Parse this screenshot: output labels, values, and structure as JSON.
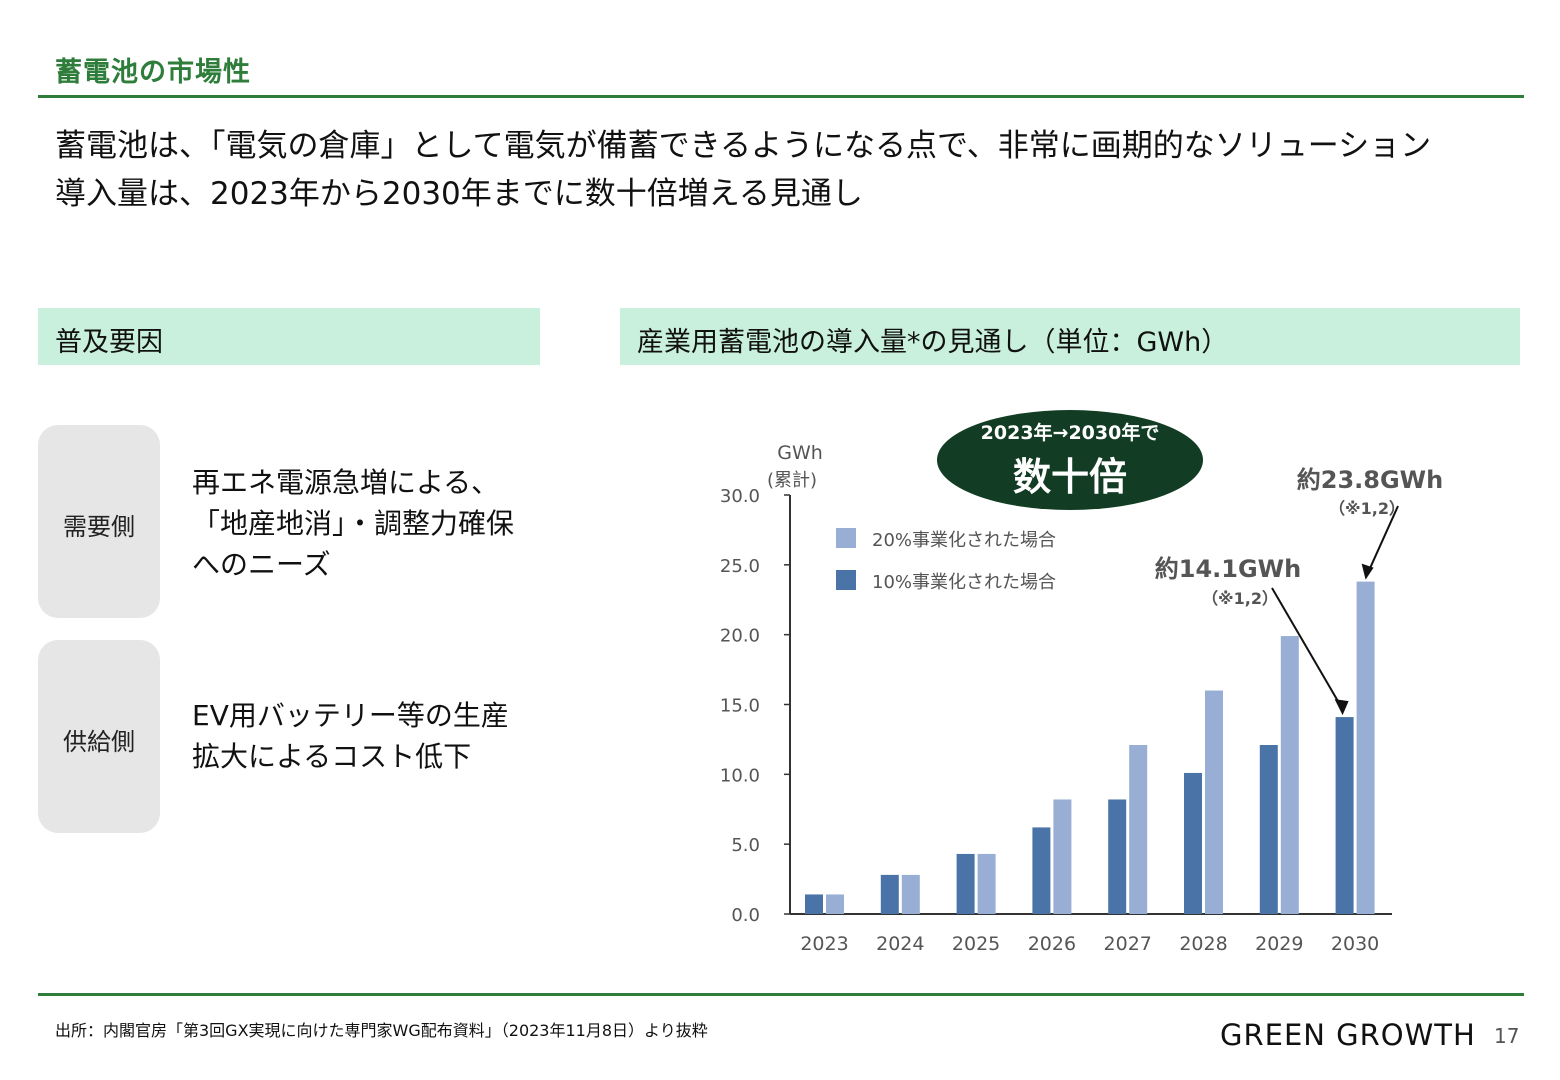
{
  "page_title": "蓄電池の市場性",
  "headline": [
    "蓄電池は、「電気の倉庫」として電気が備蓄できるようになる点で、非常に画期的なソリューション",
    "導入量は、2023年から2030年までに数十倍増える見通し"
  ],
  "left_section": {
    "header": "普及要因",
    "factors": [
      {
        "label": "需要側",
        "text": [
          "再エネ電源急増による、",
          "「地産地消」・調整力確保",
          "へのニーズ"
        ]
      },
      {
        "label": "供給側",
        "text": [
          "EV用バッテリー等の生産",
          "拡大によるコスト低下"
        ]
      }
    ]
  },
  "right_section": {
    "header": "産業用蓄電池の導入量*の見通し（単位：GWh）",
    "callout": {
      "line1": "2023年→2030年で",
      "line2": "数十倍"
    }
  },
  "chart_data": {
    "type": "bar",
    "yunit": "GWh",
    "ysub": "(累計)",
    "ylim": [
      0,
      30
    ],
    "yticks": [
      "0.0",
      "5.0",
      "10.0",
      "15.0",
      "20.0",
      "25.0",
      "30.0"
    ],
    "grid": false,
    "legend_position": "top-left",
    "categories": [
      "2023",
      "2024",
      "2025",
      "2026",
      "2027",
      "2028",
      "2029",
      "2030"
    ],
    "series": [
      {
        "name": "10%事業化された場合",
        "color": "#4a74a8",
        "values": [
          1.4,
          2.8,
          4.3,
          6.2,
          8.2,
          10.1,
          12.1,
          14.1
        ]
      },
      {
        "name": "20%事業化された場合",
        "color": "#98aed4",
        "values": [
          1.4,
          2.8,
          4.3,
          8.2,
          12.1,
          16.0,
          19.9,
          23.8
        ]
      }
    ],
    "annotations": [
      {
        "text": "約14.1GWh",
        "note": "（※1,2）",
        "category": "2030",
        "series": "10%事業化された場合"
      },
      {
        "text": "約23.8GWh",
        "note": "（※1,2）",
        "category": "2030",
        "series": "20%事業化された場合"
      }
    ]
  },
  "footer": {
    "source": "出所：内閣官房「第3回GX実現に向けた専門家WG配布資料」（2023年11月8日）より抜粋",
    "brand": "GREEN GROWTH",
    "page_number": "17"
  }
}
